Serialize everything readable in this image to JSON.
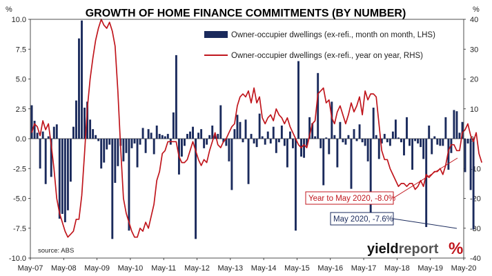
{
  "chart_data": {
    "type": "bar+line",
    "title": "GROWTH OF HOME FINANCE COMMITMENTS (BY NUMBER)",
    "left_axis_unit": "%",
    "right_axis_unit": "%",
    "left_ylim": [
      -10,
      10
    ],
    "right_ylim": [
      -40,
      40
    ],
    "left_ticks": [
      "10.0",
      "7.5",
      "5.0",
      "2.5",
      "0.0",
      "-2.5",
      "-5.0",
      "-7.5",
      "-10.0"
    ],
    "right_ticks": [
      "40",
      "30",
      "20",
      "10",
      "0",
      "-10",
      "-20",
      "-30",
      "-40"
    ],
    "x_ticks": [
      "May-07",
      "May-08",
      "May-09",
      "May-10",
      "May-11",
      "May-12",
      "May-13",
      "May-14",
      "May-15",
      "May-16",
      "May-17",
      "May-18",
      "May-19",
      "May-20"
    ],
    "grid": false,
    "legend_position": "top-right",
    "series": [
      {
        "name": "Owner-occupier dwellings (ex-refi., month on month, LHS)",
        "kind": "bar",
        "axis": "left",
        "color": "#1a2a5c",
        "start": "May-07",
        "frequency": "monthly",
        "values": [
          2.8,
          1.5,
          0.5,
          -2.5,
          0.6,
          -3.8,
          0.2,
          -3.2,
          1.0,
          1.2,
          -6.7,
          -6.3,
          -7.0,
          -6.0,
          -3.6,
          1.0,
          3.2,
          8.4,
          9.9,
          2.6,
          3.1,
          1.6,
          0.8,
          0.3,
          -0.2,
          -2.5,
          -2.0,
          -0.9,
          -0.5,
          -8.4,
          -3.7,
          -2.3,
          -0.6,
          -1.9,
          -1.2,
          -7.7,
          -0.8,
          -0.4,
          -2.4,
          -0.5,
          0.9,
          -1.2,
          0.8,
          0.5,
          -1.3,
          1.1,
          0.4,
          0.3,
          0.2,
          0.4,
          -0.5,
          2.2,
          7.0,
          -3.0,
          -1.5,
          -0.6,
          0.4,
          0.6,
          1.0,
          -8.4,
          0.5,
          0.8,
          -0.8,
          -0.5,
          0.3,
          1.1,
          0.3,
          0.4,
          2.8,
          -0.3,
          -0.6,
          -1.9,
          -4.3,
          0.8,
          2.0,
          1.4,
          -0.3,
          1.6,
          -3.8,
          0.4,
          -0.4,
          -0.7,
          2.1,
          0.2,
          -0.5,
          0.6,
          -0.4,
          1.0,
          -1.2,
          -0.3,
          1.1,
          -0.6,
          -2.4,
          0.6,
          -0.8,
          -7.7,
          6.5,
          -1.5,
          -1.6,
          -0.6,
          1.8,
          1.3,
          0.2,
          5.5,
          -0.8,
          -3.9,
          0.1,
          -1.3,
          3.1,
          0.3,
          -2.4,
          1.4,
          -0.3,
          -0.5,
          0.3,
          -4.2,
          0.8,
          -0.2,
          1.2,
          -0.3,
          -0.6,
          -1.9,
          -7.2,
          2.6,
          0.3,
          -1.7,
          -0.4,
          0.4,
          -0.3,
          -0.6,
          0.6,
          1.6,
          0.1,
          -0.3,
          -1.4,
          1.8,
          -0.6,
          -2.6,
          -0.2,
          -0.4,
          -0.7,
          -1.7,
          -7.4,
          1.1,
          -1.3,
          0.2,
          -0.5,
          -0.6,
          -0.6,
          1.8,
          -2.6,
          -1.2,
          2.4,
          2.3,
          0.5,
          1.4,
          -2.8,
          -0.4,
          -4.3,
          -7.6
        ]
      },
      {
        "name": "Owner-occupier dwellings (ex-refi., year on year, RHS)",
        "kind": "line",
        "axis": "right",
        "color": "#c0151c",
        "start": "May-07",
        "frequency": "monthly",
        "values": [
          2,
          5,
          4,
          1,
          6,
          3,
          5,
          -2,
          -10,
          -20,
          -25,
          -28,
          -31,
          -33,
          -32,
          -31,
          -27,
          -27,
          -19,
          -5,
          10,
          20,
          27,
          33,
          37,
          40,
          38,
          37,
          39,
          36,
          31,
          16,
          -3,
          -20,
          -25,
          -28,
          -31,
          -33,
          -33,
          -30,
          -31,
          -28,
          -30,
          -26,
          -22,
          -14,
          -11,
          -5,
          -4,
          -1,
          -1,
          -1,
          -1,
          -6,
          -8,
          -8,
          -7,
          -4,
          -1,
          -4,
          -7,
          -9,
          -7,
          -8,
          -4,
          -1,
          2,
          -2,
          -3,
          -1,
          0,
          2,
          4,
          5,
          11,
          14,
          15,
          14,
          16,
          12,
          17,
          12,
          14,
          7,
          5,
          7,
          8,
          6,
          10,
          8,
          7,
          5,
          7,
          4,
          2,
          0,
          -2,
          -3,
          -2,
          -3,
          1,
          5,
          6,
          15,
          16,
          17,
          12,
          13,
          7,
          5,
          9,
          11,
          8,
          5,
          8,
          12,
          9,
          11,
          14,
          8,
          16,
          13,
          15,
          15,
          14,
          5,
          -4,
          -7,
          -7,
          -10,
          -12,
          -14,
          -16,
          -15,
          -15,
          -16,
          -15,
          -15,
          -17,
          -16,
          -14,
          -16,
          -12,
          -13,
          -12,
          -11,
          -11,
          -10,
          -12,
          -9,
          -4,
          -2,
          -2,
          -4,
          -4,
          2,
          3,
          5,
          1,
          -1,
          2,
          -5,
          -8
        ]
      }
    ],
    "annotations": [
      {
        "text": "Year to May 2020, -8.0%",
        "color": "#c0151c"
      },
      {
        "text": "May 2020, -7.6%",
        "color": "#1a2a5c"
      }
    ],
    "source_note": "source: ABS"
  },
  "brand": {
    "name_part1": "yield",
    "name_part2": "report",
    "symbol": "%"
  }
}
